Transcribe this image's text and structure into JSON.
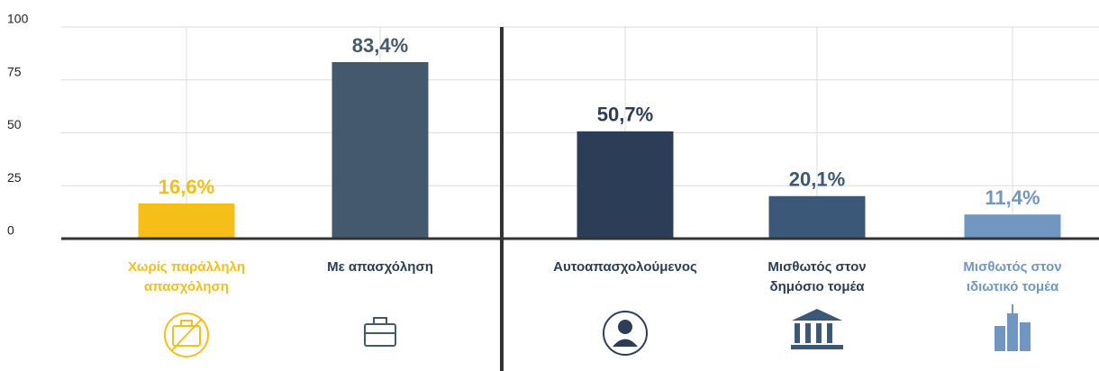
{
  "chart_data": {
    "type": "bar",
    "categories": [
      "Χωρίς παράλληλη απασχόληση",
      "Με απασχόληση",
      "Αυτοαπασχολούμενος",
      "Μισθωτός στον δημόσιο τομέα",
      "Μισθωτός στον ιδιωτικό τομέα"
    ],
    "values": [
      16.6,
      83.4,
      50.7,
      20.1,
      11.4
    ],
    "value_labels": [
      "16,6%",
      "83,4%",
      "50,7%",
      "20,1%",
      "11,4%"
    ],
    "colors": [
      "#f5be19",
      "#44596b",
      "#2b3d57",
      "#3c5878",
      "#6f97c0"
    ],
    "ylim": [
      0,
      100
    ],
    "yticks": [
      0,
      25,
      50,
      75,
      100
    ],
    "grid": true
  }
}
